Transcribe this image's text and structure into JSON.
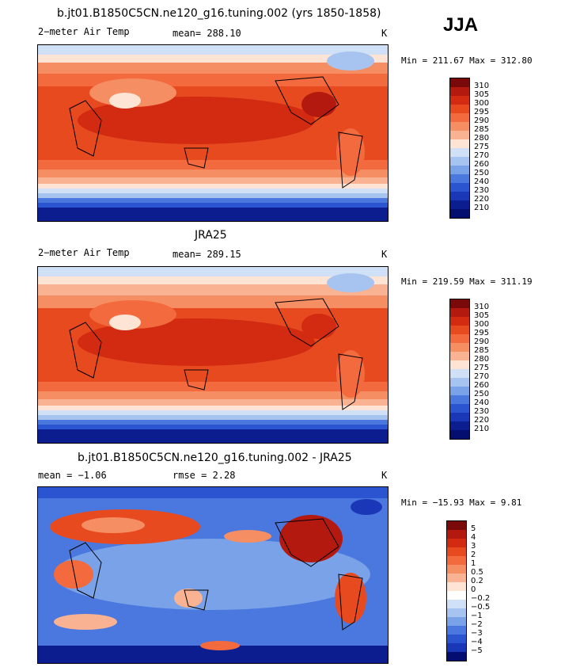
{
  "season": "JJA",
  "chart_data": [
    {
      "type": "heatmap",
      "title": "b.jt01.B1850C5CN.ne120_g16.tuning.002 (yrs 1850-1858)",
      "left_label": "2−meter Air Temp",
      "center_label": "mean= 288.10",
      "units": "K",
      "min_max": "Min = 211.67 Max = 312.80",
      "mean": 288.1,
      "min": 211.67,
      "max": 312.8,
      "legend_levels": [
        "310",
        "305",
        "300",
        "295",
        "290",
        "285",
        "280",
        "275",
        "270",
        "260",
        "250",
        "240",
        "230",
        "220",
        "210"
      ]
    },
    {
      "type": "heatmap",
      "title": "JRA25",
      "left_label": "2−meter Air Temp",
      "center_label": "mean= 289.15",
      "units": "K",
      "min_max": "Min = 219.59 Max = 311.19",
      "mean": 289.15,
      "min": 219.59,
      "max": 311.19,
      "legend_levels": [
        "310",
        "305",
        "300",
        "295",
        "290",
        "285",
        "280",
        "275",
        "270",
        "260",
        "250",
        "240",
        "230",
        "220",
        "210"
      ]
    },
    {
      "type": "heatmap",
      "title": "b.jt01.B1850C5CN.ne120_g16.tuning.002 - JRA25",
      "left_label": "mean =   −1.06",
      "center_label": "rmse =    2.28",
      "units": "K",
      "min_max": "Min = −15.93 Max =   9.81",
      "mean": -1.06,
      "rmse": 2.28,
      "min": -15.93,
      "max": 9.81,
      "legend_levels": [
        "5",
        "4",
        "3",
        "2",
        "1",
        "0.5",
        "0.2",
        "0",
        "−0.2",
        "−0.5",
        "−1",
        "−2",
        "−3",
        "−4",
        "−5"
      ]
    }
  ],
  "colors": {
    "abs_scale": [
      "#7a0a0a",
      "#b3190e",
      "#d32b12",
      "#e84a20",
      "#f26a3e",
      "#f68e63",
      "#fab392",
      "#fde4d4",
      "#cfe0f7",
      "#a7c3f0",
      "#7aa2e8",
      "#4a78de",
      "#2a54d0",
      "#1a37b8",
      "#0b1d8f",
      "#040e70"
    ],
    "diff_scale": [
      "#7a0a0a",
      "#b3190e",
      "#d32b12",
      "#e84a20",
      "#f26a3e",
      "#f68e63",
      "#fab392",
      "#fde4d4",
      "#ffffff",
      "#cfe0f7",
      "#a7c3f0",
      "#7aa2e8",
      "#4a78de",
      "#2a54d0",
      "#1a37b8",
      "#040e70"
    ]
  }
}
